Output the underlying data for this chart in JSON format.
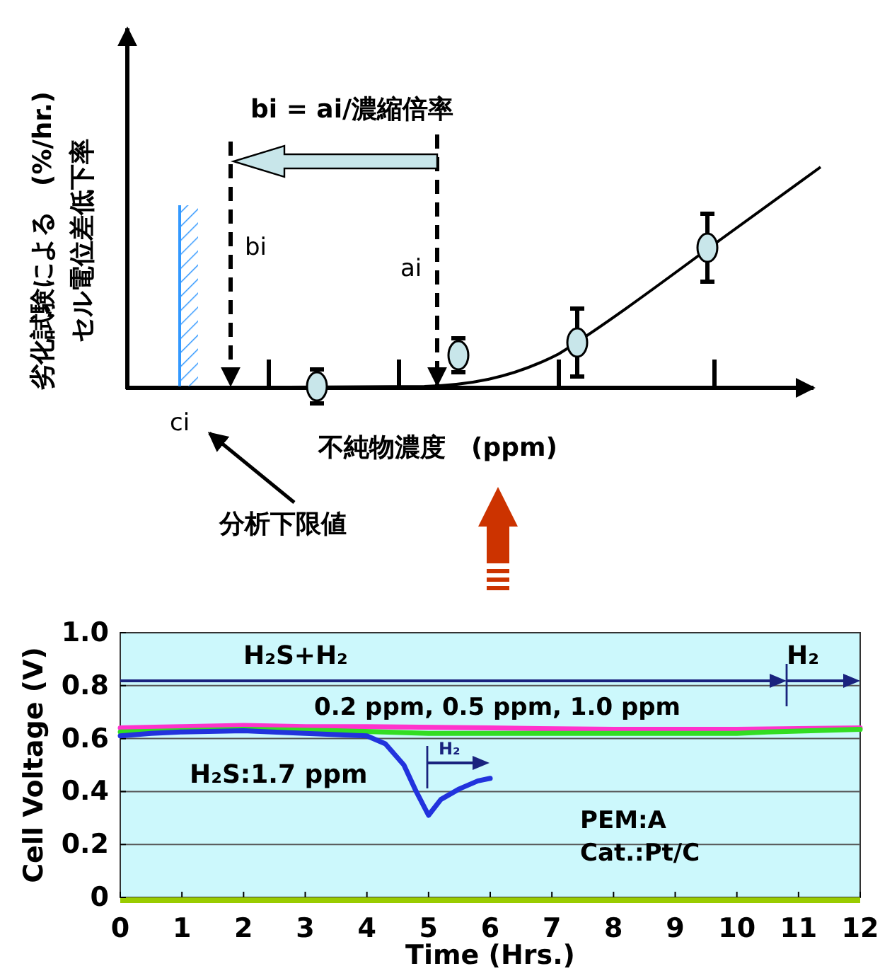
{
  "chart_data": [
    {
      "type": "other",
      "xlabel": "不純物濃度　(ppm)",
      "ylabel": "劣化試験による　(%/hr.)\nセル電位差低下率",
      "annotations": [
        "bi = ai/濃縮倍率",
        "分析下限値",
        "bi",
        "ai",
        "ci"
      ]
    },
    {
      "type": "line",
      "xlim": [
        0,
        12
      ],
      "xticks": [
        0,
        1,
        2,
        3,
        4,
        5,
        6,
        7,
        8,
        9,
        10,
        11,
        12
      ],
      "ylim": [
        0,
        1
      ],
      "yticks": [
        0,
        0.2,
        0.4,
        0.6,
        0.8,
        {
          "value": 1,
          "label": "1.0"
        }
      ],
      "grid": "y",
      "xlabel": "Time  (Hrs.)",
      "ylabel": "Cell Voltage   (V)",
      "series": [
        {
          "color": "#ff33cc",
          "x": [
            0,
            1,
            2,
            3,
            4,
            6,
            8,
            10,
            12
          ],
          "values": [
            0.64,
            0.645,
            0.65,
            0.645,
            0.645,
            0.64,
            0.635,
            0.635,
            0.64
          ]
        },
        {
          "color": "#33dd22",
          "x": [
            0,
            2,
            3.5,
            5,
            6,
            8,
            10,
            10.5,
            12
          ],
          "values": [
            0.625,
            0.635,
            0.63,
            0.62,
            0.62,
            0.62,
            0.62,
            0.625,
            0.635
          ]
        },
        {
          "name": "H₂S:1.7 ppm",
          "color": "#2233dd",
          "x": [
            0,
            0.5,
            1,
            2,
            3,
            3.5,
            4,
            4.3,
            4.6,
            4.8,
            5,
            5.2,
            5.5,
            5.8,
            6
          ],
          "values": [
            0.61,
            0.62,
            0.625,
            0.63,
            0.62,
            0.615,
            0.61,
            0.58,
            0.5,
            0.4,
            0.31,
            0.37,
            0.41,
            0.44,
            0.45
          ]
        }
      ],
      "annotations": [
        "H₂S+H₂",
        "H₂",
        "H₂",
        "0.2 ppm, 0.5 ppm, 1.0 ppm",
        "PEM:A",
        "Cat.:Pt/C"
      ]
    }
  ]
}
